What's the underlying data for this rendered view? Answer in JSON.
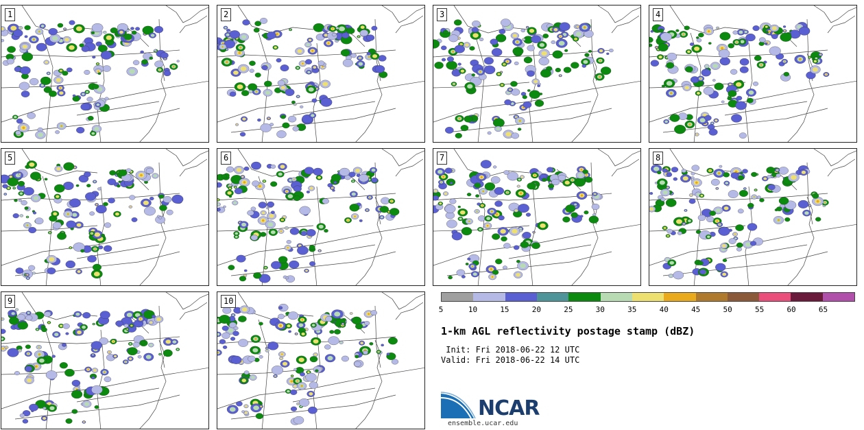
{
  "panels": [
    {
      "label": "1"
    },
    {
      "label": "2"
    },
    {
      "label": "3"
    },
    {
      "label": "4"
    },
    {
      "label": "5"
    },
    {
      "label": "6"
    },
    {
      "label": "7"
    },
    {
      "label": "8"
    },
    {
      "label": "9"
    },
    {
      "label": "10"
    }
  ],
  "colorbar": {
    "colors": [
      "#a0a0a0",
      "#b4b9e6",
      "#5a5fd2",
      "#4e9498",
      "#0b8a0f",
      "#b8dbb4",
      "#eee070",
      "#eaaa1e",
      "#b07a2e",
      "#8a5a3a",
      "#ea4e7a",
      "#6a1a3a",
      "#b050aa"
    ],
    "ticks": [
      "5",
      "10",
      "15",
      "20",
      "25",
      "30",
      "35",
      "40",
      "45",
      "50",
      "55",
      "60",
      "65"
    ]
  },
  "title": "1-km AGL reflectivity postage stamp (dBZ)",
  "init": " Init: Fri 2018-06-22 12 UTC",
  "valid": "Valid: Fri 2018-06-22 14 UTC",
  "logo": {
    "text": "NCAR",
    "icon": "ncar-logo-icon"
  },
  "url": "ensemble.ucar.edu"
}
